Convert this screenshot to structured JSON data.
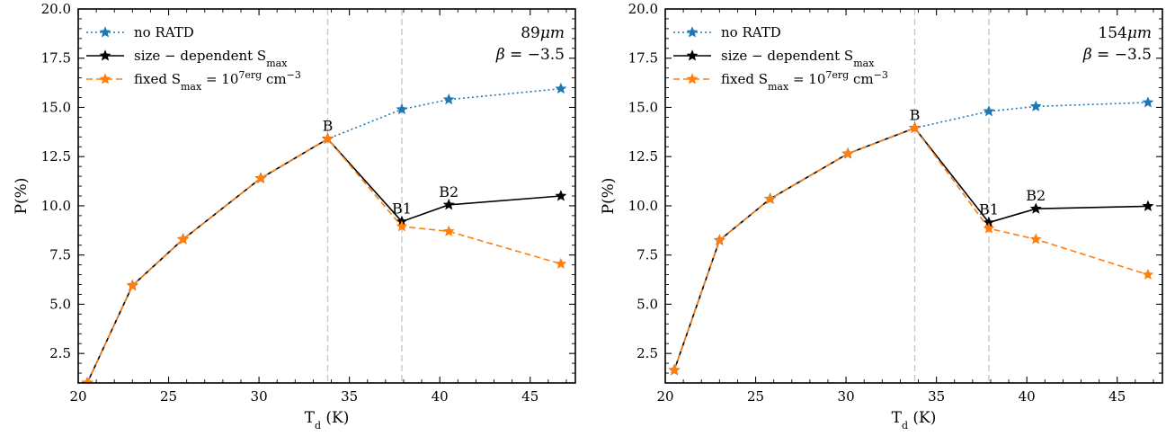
{
  "chart_data": [
    {
      "type": "line",
      "xlabel": "T_d (K)",
      "ylabel": "P(%)",
      "xlim": [
        20,
        47.5
      ],
      "ylim": [
        1,
        20
      ],
      "xticks": [
        20,
        25,
        30,
        35,
        40,
        45
      ],
      "yticks": [
        2.5,
        5.0,
        7.5,
        10.0,
        12.5,
        15.0,
        17.5,
        20.0
      ],
      "annotation": {
        "line1": "89μm",
        "line2": "β = −3.5"
      },
      "vlines": [
        33.8,
        37.9
      ],
      "legend_position": "upper-left",
      "series": [
        {
          "name": "no RATD",
          "color": "#1f77b4",
          "dash": "dotted",
          "x": [
            20.5,
            23.0,
            25.8,
            30.1,
            33.8,
            37.9,
            40.5,
            46.7
          ],
          "y": [
            1.0,
            5.95,
            8.3,
            11.4,
            13.4,
            14.9,
            15.4,
            15.95
          ]
        },
        {
          "name": "size − dependent S_max",
          "color": "#000000",
          "dash": "solid",
          "x": [
            20.5,
            23.0,
            25.8,
            30.1,
            33.8,
            37.9,
            40.5,
            46.7
          ],
          "y": [
            1.0,
            5.95,
            8.3,
            11.4,
            13.4,
            9.2,
            10.05,
            10.5
          ]
        },
        {
          "name": "fixed S_max = 10^7erg cm^−3",
          "color": "#ff7f0e",
          "dash": "dashed",
          "x": [
            20.5,
            23.0,
            25.8,
            30.1,
            33.8,
            37.9,
            40.5,
            46.7
          ],
          "y": [
            1.0,
            5.95,
            8.3,
            11.4,
            13.4,
            8.95,
            8.7,
            7.05
          ]
        }
      ],
      "point_labels": [
        {
          "text": "B",
          "x": 33.8,
          "y": 13.4
        },
        {
          "text": "B1",
          "x": 37.9,
          "y": 9.2
        },
        {
          "text": "B2",
          "x": 40.5,
          "y": 10.05
        }
      ]
    },
    {
      "type": "line",
      "xlabel": "T_d (K)",
      "ylabel": "P(%)",
      "xlim": [
        20,
        47.5
      ],
      "ylim": [
        1,
        20
      ],
      "xticks": [
        20,
        25,
        30,
        35,
        40,
        45
      ],
      "yticks": [
        2.5,
        5.0,
        7.5,
        10.0,
        12.5,
        15.0,
        17.5,
        20.0
      ],
      "annotation": {
        "line1": "154μm",
        "line2": "β = −3.5"
      },
      "vlines": [
        33.8,
        37.9
      ],
      "legend_position": "upper-left",
      "series": [
        {
          "name": "no RATD",
          "color": "#1f77b4",
          "dash": "dotted",
          "x": [
            20.5,
            23.0,
            25.8,
            30.1,
            33.8,
            37.9,
            40.5,
            46.7
          ],
          "y": [
            1.65,
            8.25,
            10.35,
            12.65,
            13.95,
            14.8,
            15.05,
            15.25
          ]
        },
        {
          "name": "size − dependent S_max",
          "color": "#000000",
          "dash": "solid",
          "x": [
            20.5,
            23.0,
            25.8,
            30.1,
            33.8,
            37.9,
            40.5,
            46.7
          ],
          "y": [
            1.65,
            8.25,
            10.35,
            12.65,
            13.95,
            9.15,
            9.85,
            9.98
          ]
        },
        {
          "name": "fixed S_max = 10^7erg cm^−3",
          "color": "#ff7f0e",
          "dash": "dashed",
          "x": [
            20.5,
            23.0,
            25.8,
            30.1,
            33.8,
            37.9,
            40.5,
            46.7
          ],
          "y": [
            1.65,
            8.25,
            10.35,
            12.65,
            13.95,
            8.85,
            8.3,
            6.5
          ]
        }
      ],
      "point_labels": [
        {
          "text": "B",
          "x": 33.8,
          "y": 13.95
        },
        {
          "text": "B1",
          "x": 37.9,
          "y": 9.15
        },
        {
          "text": "B2",
          "x": 40.5,
          "y": 9.85
        }
      ]
    }
  ]
}
